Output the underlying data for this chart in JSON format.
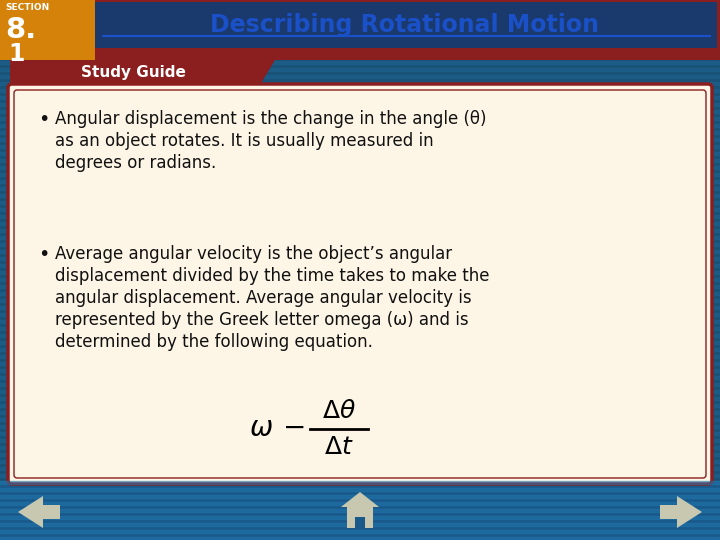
{
  "title": "Describing Rotational Motion",
  "section_label": "SECTION",
  "section_number": "8.",
  "section_sub": "1",
  "study_guide_label": "Study Guide",
  "bullet1_line1": "Angular displacement is the change in the angle (θ)",
  "bullet1_line2": "as an object rotates. It is usually measured in",
  "bullet1_line3": "degrees or radians.",
  "bullet2_line1": "Average angular velocity is the object’s angular",
  "bullet2_line2": "displacement divided by the time takes to make the",
  "bullet2_line3": "angular displacement. Average angular velocity is",
  "bullet2_line4": "represented by the Greek letter omega (ω) and is",
  "bullet2_line5": "determined by the following equation.",
  "bg_color": "#1a5276",
  "dark_red": "#8b1e1e",
  "orange_color": "#d4820a",
  "blue_dark": "#154360",
  "content_bg": "#fdf5e6",
  "title_color": "#1a50c8",
  "text_color": "#111111",
  "nav_color": "#1a5a8a",
  "icon_color": "#c8c8b0"
}
